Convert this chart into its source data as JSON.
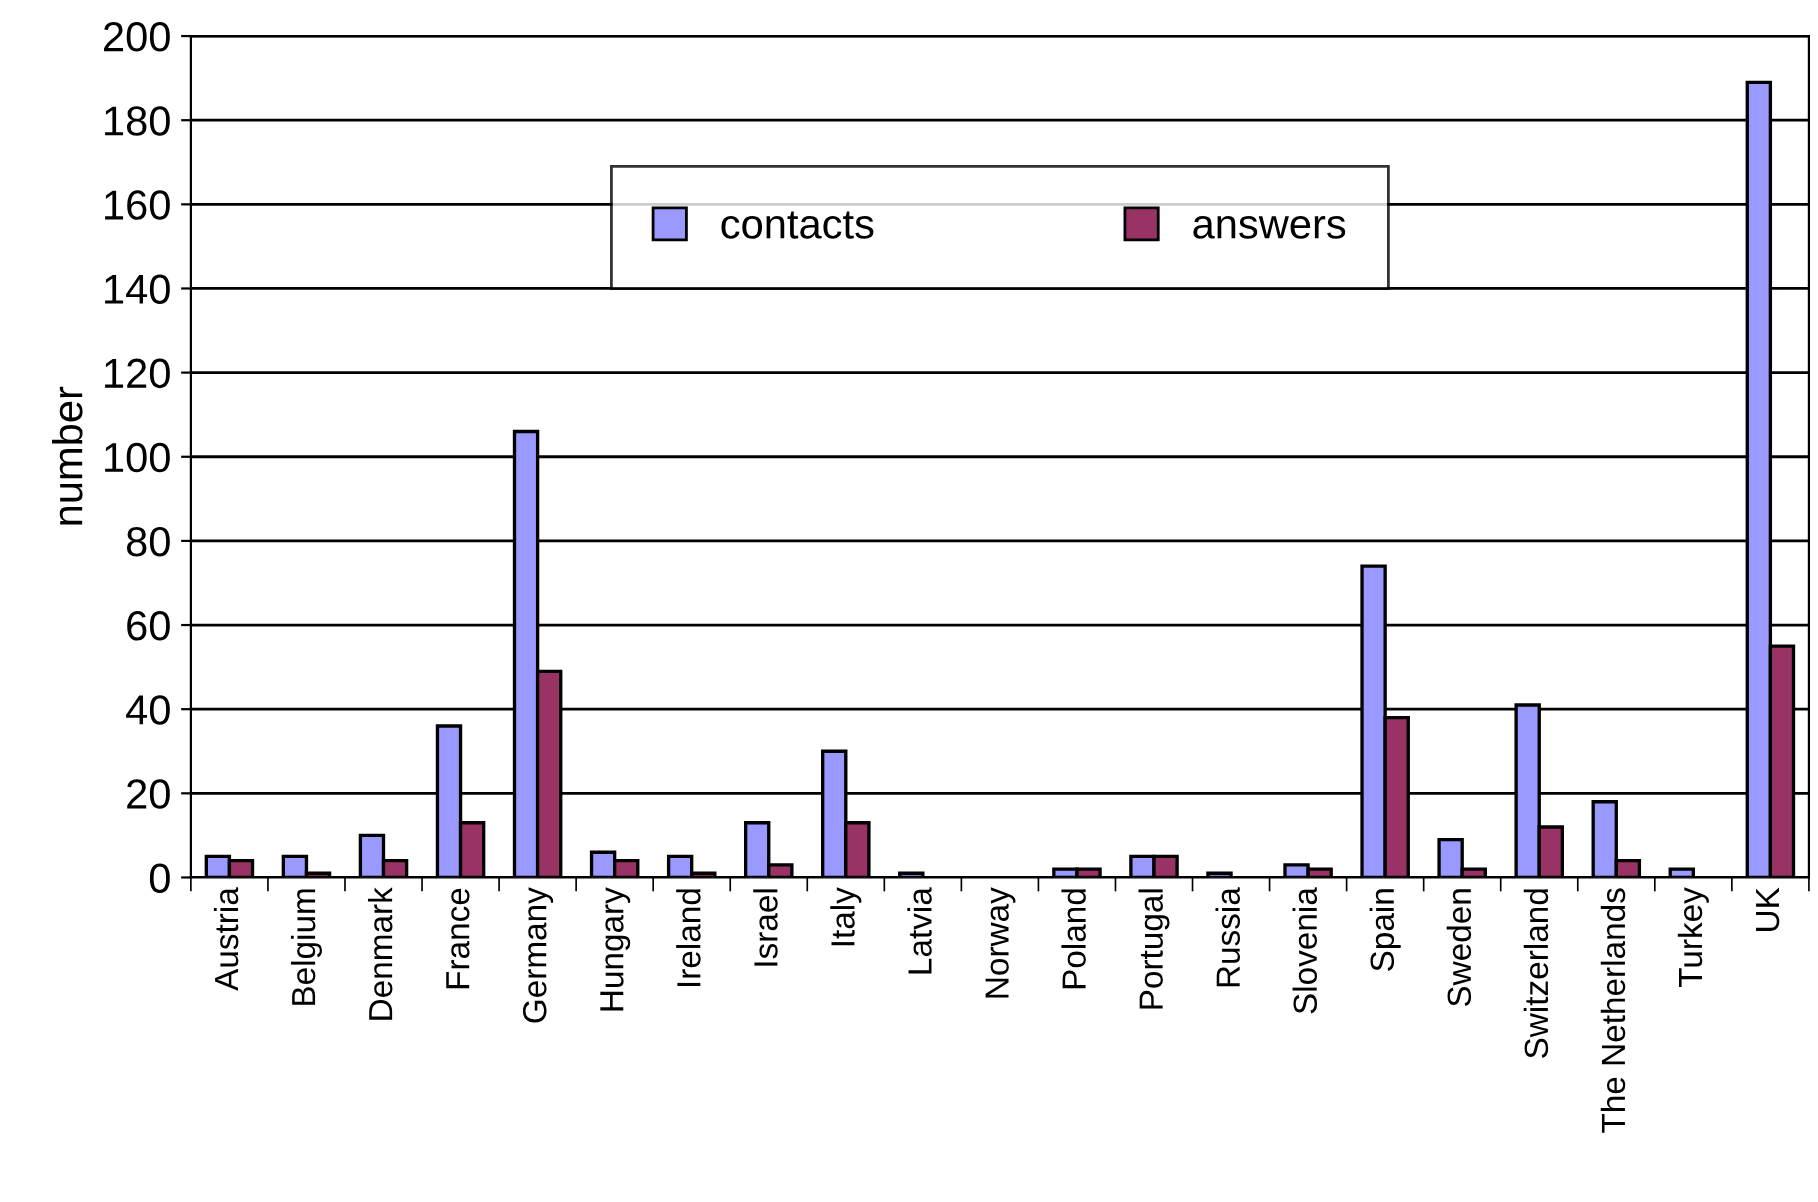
{
  "chart_data": {
    "type": "bar",
    "ylabel": "number",
    "categories": [
      "Austria",
      "Belgium",
      "Denmark",
      "France",
      "Germany",
      "Hungary",
      "Ireland",
      "Israel",
      "Italy",
      "Latvia",
      "Norway",
      "Poland",
      "Portugal",
      "Russia",
      "Slovenia",
      "Spain",
      "Sweden",
      "Switzerland",
      "The Netherlands",
      "Turkey",
      "UK"
    ],
    "series": [
      {
        "name": "contacts",
        "color": "#9999ff",
        "values": [
          5,
          5,
          10,
          36,
          106,
          6,
          5,
          13,
          30,
          1,
          0,
          2,
          5,
          1,
          3,
          74,
          9,
          41,
          18,
          2,
          189
        ]
      },
      {
        "name": "answers",
        "color": "#993366",
        "values": [
          4,
          1,
          4,
          13,
          49,
          4,
          1,
          3,
          13,
          0,
          0,
          2,
          5,
          0,
          2,
          38,
          2,
          12,
          4,
          0,
          55
        ]
      }
    ],
    "ylim": [
      0,
      200
    ],
    "yticks": [
      0,
      20,
      40,
      60,
      80,
      100,
      120,
      140,
      160,
      180,
      200
    ],
    "grid": "y",
    "legend": "top"
  }
}
